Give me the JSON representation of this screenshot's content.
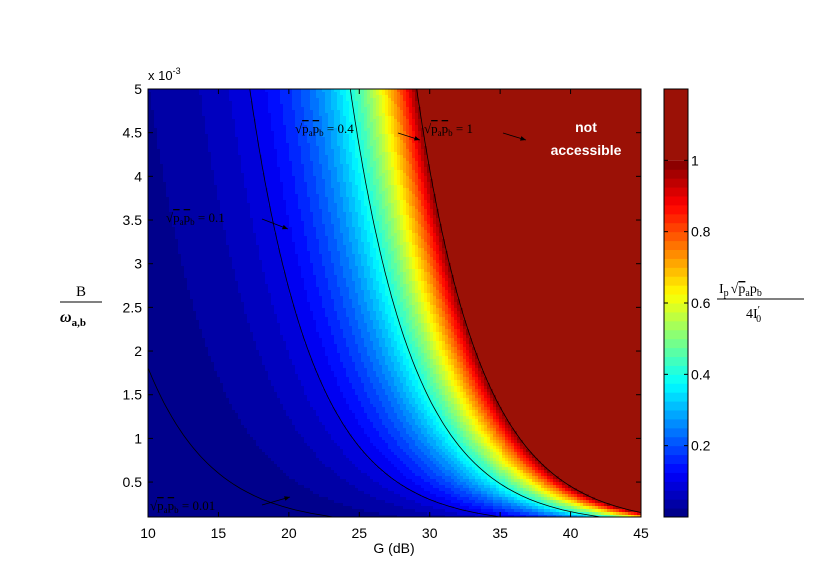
{
  "chart_data": {
    "type": "heatmap",
    "title": "",
    "xlabel": "G (dB)",
    "ylabel": {
      "numerator": "B",
      "denominator": "ω",
      "denominator_sub": "a,b"
    },
    "x_range": [
      10,
      45
    ],
    "y_range": [
      0.0001,
      0.005
    ],
    "x_ticks": [
      10,
      15,
      20,
      25,
      30,
      35,
      40,
      45
    ],
    "x_tick_labels": [
      "10",
      "15",
      "20",
      "25",
      "30",
      "35",
      "40",
      "45"
    ],
    "y_ticks": [
      0.0005,
      0.001,
      0.0015,
      0.002,
      0.0025,
      0.003,
      0.0035,
      0.004,
      0.0045,
      0.005
    ],
    "y_tick_labels": [
      "0.5",
      "1",
      "1.5",
      "2",
      "2.5",
      "3",
      "3.5",
      "4",
      "4.5",
      "5"
    ],
    "y_exponent_label": "x 10",
    "y_exponent_power": "-3",
    "colorbar": {
      "range": [
        0,
        1.2
      ],
      "ticks": [
        0.2,
        0.4,
        0.6,
        0.8,
        1
      ],
      "tick_labels": [
        "0.2",
        "0.4",
        "0.6",
        "0.8",
        "1"
      ],
      "label": {
        "numerator": "I",
        "numerator_sub": "p",
        "numerator_root": "p",
        "root_sub_a": "a",
        "root_sub_b": "b",
        "denominator": "4I",
        "denominator_prime": "′",
        "denominator_sub": "0"
      }
    },
    "region_label": {
      "line1": "not",
      "line2": "accessible"
    },
    "contours": [
      {
        "level": 0.01,
        "label_value": "0.01"
      },
      {
        "level": 0.1,
        "label_value": "0.1"
      },
      {
        "level": 0.4,
        "label_value": "0.4"
      },
      {
        "level": 1,
        "label_value": "1"
      }
    ],
    "contour_label_prefix": {
      "root": "p",
      "sub_a": "a",
      "sub_b": "b",
      "equals": "="
    },
    "grid": false
  }
}
